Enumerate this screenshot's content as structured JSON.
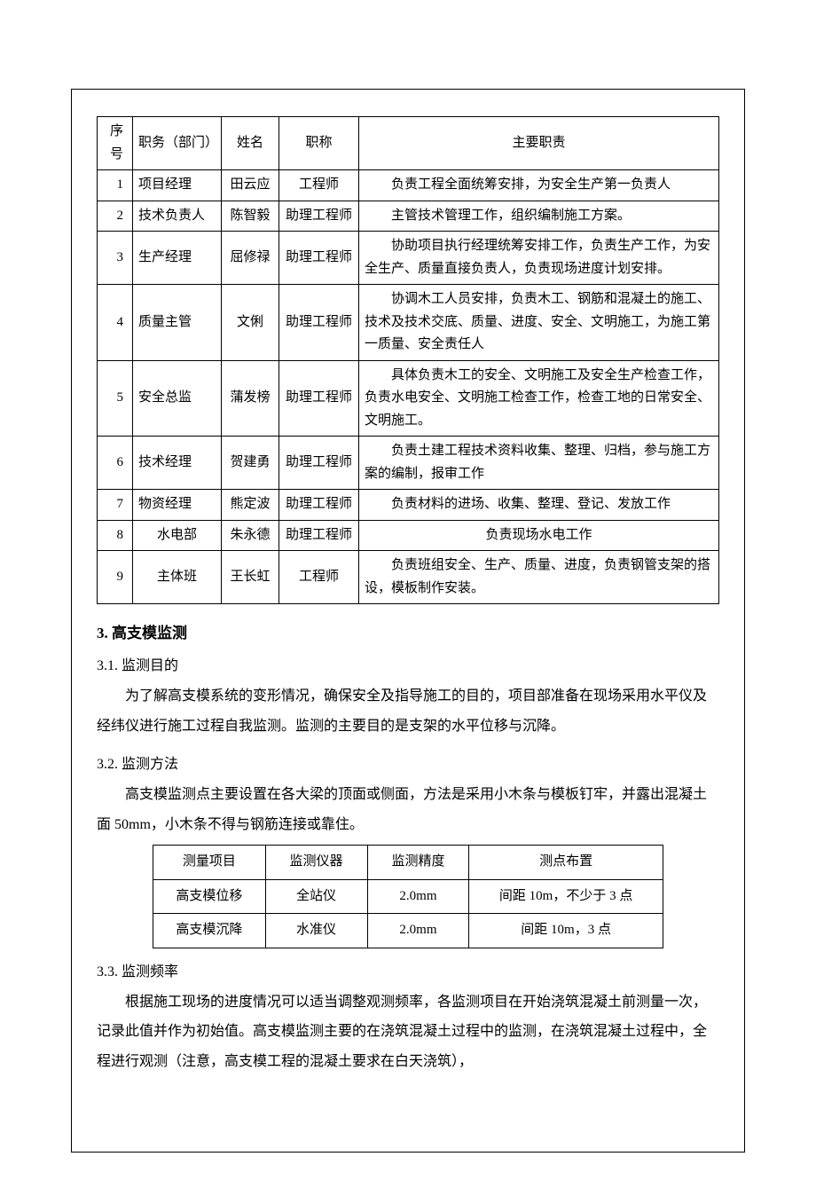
{
  "table1": {
    "headers": {
      "seq": "序号",
      "dept": "职务（部门）",
      "name": "姓名",
      "title": "职称",
      "duty": "主要职责"
    },
    "rows": [
      {
        "seq": "1",
        "dept": "项目经理",
        "dept_center": false,
        "name": "田云应",
        "title": "工程师",
        "duty": "负责工程全面统筹安排，为安全生产第一负责人"
      },
      {
        "seq": "2",
        "dept": "技术负责人",
        "dept_center": false,
        "name": "陈智毅",
        "title": "助理工程师",
        "duty": "主管技术管理工作，组织编制施工方案。"
      },
      {
        "seq": "3",
        "dept": "生产经理",
        "dept_center": false,
        "name": "屈修禄",
        "title": "助理工程师",
        "duty": "协助项目执行经理统筹安排工作，负责生产工作，为安全生产、质量直接负责人，负责现场进度计划安排。"
      },
      {
        "seq": "4",
        "dept": "质量主管",
        "dept_center": false,
        "name": "文俐",
        "title": "助理工程师",
        "duty": "协调木工人员安排，负责木工、钢筋和混凝土的施工、技术及技术交底、质量、进度、安全、文明施工，为施工第一质量、安全责任人"
      },
      {
        "seq": "5",
        "dept": "安全总监",
        "dept_center": false,
        "name": "蒲发榜",
        "title": "助理工程师",
        "duty": "具体负责木工的安全、文明施工及安全生产检查工作，负责水电安全、文明施工检查工作，检查工地的日常安全、文明施工。"
      },
      {
        "seq": "6",
        "dept": "技术经理",
        "dept_center": false,
        "name": "贺建勇",
        "title": "助理工程师",
        "duty": "负责土建工程技术资料收集、整理、归档，参与施工方案的编制，报审工作"
      },
      {
        "seq": "7",
        "dept": "物资经理",
        "dept_center": false,
        "name": "熊定波",
        "title": "助理工程师",
        "duty": "负责材料的进场、收集、整理、登记、发放工作"
      },
      {
        "seq": "8",
        "dept": "水电部",
        "dept_center": true,
        "name": "朱永德",
        "title": "助理工程师",
        "duty": "负责现场水电工作",
        "duty_center": true
      },
      {
        "seq": "9",
        "dept": "主体班",
        "dept_center": true,
        "name": "王长虹",
        "title": "工程师",
        "duty": "负责班组安全、生产、质量、进度，负责钢管支架的搭设，模板制作安装。"
      }
    ]
  },
  "section3": {
    "heading": "3.  高支模监测",
    "s31": {
      "heading": "3.1.  监测目的",
      "para": "为了解高支模系统的变形情况，确保安全及指导施工的目的，项目部准备在现场采用水平仪及经纬仪进行施工过程自我监测。监测的主要目的是支架的水平位移与沉降。"
    },
    "s32": {
      "heading": "3.2.  监测方法",
      "para": "高支模监测点主要设置在各大梁的顶面或侧面，方法是采用小木条与模板钉牢，并露出混凝土面 50mm，小木条不得与钢筋连接或靠住。"
    },
    "s33": {
      "heading": "3.3.  监测频率",
      "para": "根据施工现场的进度情况可以适当调整观测频率，各监测项目在开始浇筑混凝土前测量一次，记录此值并作为初始值。高支模监测主要的在浇筑混凝土过程中的监测，在浇筑混凝土过程中，全程进行观测（注意，高支模工程的混凝土要求在白天浇筑），"
    }
  },
  "table2": {
    "headers": {
      "c1": "测量项目",
      "c2": "监测仪器",
      "c3": "监测精度",
      "c4": "测点布置"
    },
    "rows": [
      {
        "c1": "高支模位移",
        "c2": "全站仪",
        "c3": "2.0mm",
        "c4": "间距 10m，不少于 3 点"
      },
      {
        "c1": "高支模沉降",
        "c2": "水准仪",
        "c3": "2.0mm",
        "c4": "间距 10m，3 点"
      }
    ]
  }
}
